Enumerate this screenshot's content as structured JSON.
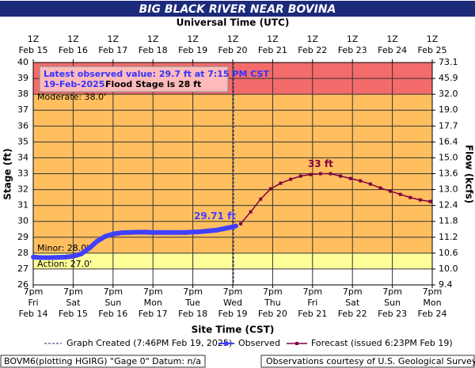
{
  "chart_data": {
    "type": "hydrograph",
    "title": "BIG BLACK RIVER NEAR BOVINA",
    "top_axis_title": "Universal Time (UTC)",
    "x_axis_title": "Site Time (CST)",
    "y_axis_title": "Stage (ft)",
    "y2_axis_title": "Flow (kcfs)",
    "xlim": [
      0,
      10
    ],
    "xticks": [
      {
        "value": 0,
        "time": "7pm",
        "day": "Fri",
        "date": "Feb 14"
      },
      {
        "value": 1,
        "time": "7pm",
        "day": "Sat",
        "date": "Feb 15"
      },
      {
        "value": 2,
        "time": "7pm",
        "day": "Sun",
        "date": "Feb 16"
      },
      {
        "value": 3,
        "time": "7pm",
        "day": "Mon",
        "date": "Feb 17"
      },
      {
        "value": 4,
        "time": "7pm",
        "day": "Tue",
        "date": "Feb 18"
      },
      {
        "value": 5,
        "time": "7pm",
        "day": "Wed",
        "date": "Feb 19"
      },
      {
        "value": 6,
        "time": "7pm",
        "day": "Thu",
        "date": "Feb 20"
      },
      {
        "value": 7,
        "time": "7pm",
        "day": "Fri",
        "date": "Feb 21"
      },
      {
        "value": 8,
        "time": "7pm",
        "day": "Sat",
        "date": "Feb 22"
      },
      {
        "value": 9,
        "time": "7pm",
        "day": "Sun",
        "date": "Feb 23"
      },
      {
        "value": 10,
        "time": "7pm",
        "day": "Mon",
        "date": "Feb 24"
      }
    ],
    "x2ticks": [
      {
        "value": 0,
        "time": "1Z",
        "date": "Feb 15"
      },
      {
        "value": 1,
        "time": "1Z",
        "date": "Feb 16"
      },
      {
        "value": 2,
        "time": "1Z",
        "date": "Feb 17"
      },
      {
        "value": 3,
        "time": "1Z",
        "date": "Feb 18"
      },
      {
        "value": 4,
        "time": "1Z",
        "date": "Feb 19"
      },
      {
        "value": 5,
        "time": "1Z",
        "date": "Feb 20"
      },
      {
        "value": 6,
        "time": "1Z",
        "date": "Feb 21"
      },
      {
        "value": 7,
        "time": "1Z",
        "date": "Feb 22"
      },
      {
        "value": 8,
        "time": "1Z",
        "date": "Feb 23"
      },
      {
        "value": 9,
        "time": "1Z",
        "date": "Feb 24"
      },
      {
        "value": 10,
        "time": "1Z",
        "date": "Feb 25"
      }
    ],
    "ylim": [
      26,
      40
    ],
    "yticks": [
      26,
      27,
      28,
      29,
      30,
      31,
      32,
      33,
      34,
      35,
      36,
      37,
      38,
      39,
      40
    ],
    "flow_ticks": [
      {
        "stage": 26,
        "label": "9.4"
      },
      {
        "stage": 27,
        "label": "10.0"
      },
      {
        "stage": 28,
        "label": "10.6"
      },
      {
        "stage": 29,
        "label": "11.2"
      },
      {
        "stage": 30,
        "label": "11.8"
      },
      {
        "stage": 31,
        "label": "12.4"
      },
      {
        "stage": 32,
        "label": "13.0"
      },
      {
        "stage": 33,
        "label": "13.6"
      },
      {
        "stage": 34,
        "label": "15.0"
      },
      {
        "stage": 35,
        "label": "16.4"
      },
      {
        "stage": 36,
        "label": "17.7"
      },
      {
        "stage": 37,
        "label": "19.0"
      },
      {
        "stage": 38,
        "label": "32.0"
      },
      {
        "stage": 39,
        "label": "45.9"
      },
      {
        "stage": 40,
        "label": "73.1"
      }
    ],
    "grid": true,
    "thresholds": [
      {
        "label": "Action: 27.0'",
        "value": 27,
        "color": "#ffff99"
      },
      {
        "label": "Minor: 28.0'",
        "value": 28,
        "color": "#ffbf5f"
      },
      {
        "label": "Moderate: 38.0'",
        "value": 38,
        "color": "#f46b6b"
      }
    ],
    "created_at": 5.02,
    "series": [
      {
        "name": "Observed",
        "color": "#4040ff",
        "x": [
          0,
          0.2,
          0.4,
          0.6,
          0.8,
          1.0,
          1.2,
          1.4,
          1.6,
          1.8,
          2.0,
          2.2,
          2.4,
          2.6,
          2.8,
          3.0,
          3.4,
          3.8,
          4.2,
          4.6,
          4.8,
          5.0,
          5.08
        ],
        "values": [
          27.75,
          27.72,
          27.72,
          27.73,
          27.75,
          27.8,
          27.95,
          28.3,
          28.75,
          29.05,
          29.2,
          29.28,
          29.3,
          29.32,
          29.32,
          29.3,
          29.3,
          29.3,
          29.35,
          29.45,
          29.55,
          29.65,
          29.71
        ]
      },
      {
        "name": "Forecast (issued 6:23PM Feb 19)",
        "color": "#800040",
        "x": [
          5.2,
          5.45,
          5.7,
          5.95,
          6.2,
          6.45,
          6.7,
          6.95,
          7.2,
          7.45,
          7.7,
          7.95,
          8.2,
          8.45,
          8.7,
          8.95,
          9.2,
          9.45,
          9.7,
          9.95
        ],
        "values": [
          29.85,
          30.6,
          31.4,
          32.05,
          32.4,
          32.65,
          32.85,
          32.95,
          33.0,
          33.0,
          32.85,
          32.7,
          32.55,
          32.35,
          32.1,
          31.9,
          31.7,
          31.5,
          31.35,
          31.25
        ]
      }
    ],
    "last_label": "29.71 ft",
    "peak_label": "33 ft",
    "note_blue": "Latest observed value: 29.7 ft at 7:15 PM CST",
    "note_date": "19-Feb-2025.",
    "note_black": "Flood Stage is 28 ft",
    "legend_created": "Graph Created (7:46PM Feb 19, 2025)",
    "footer_left": "BOVM6(plotting HGIRG) \"Gage 0\" Datum: n/a",
    "footer_right": "Observations courtesy of U.S. Geological Survey"
  }
}
